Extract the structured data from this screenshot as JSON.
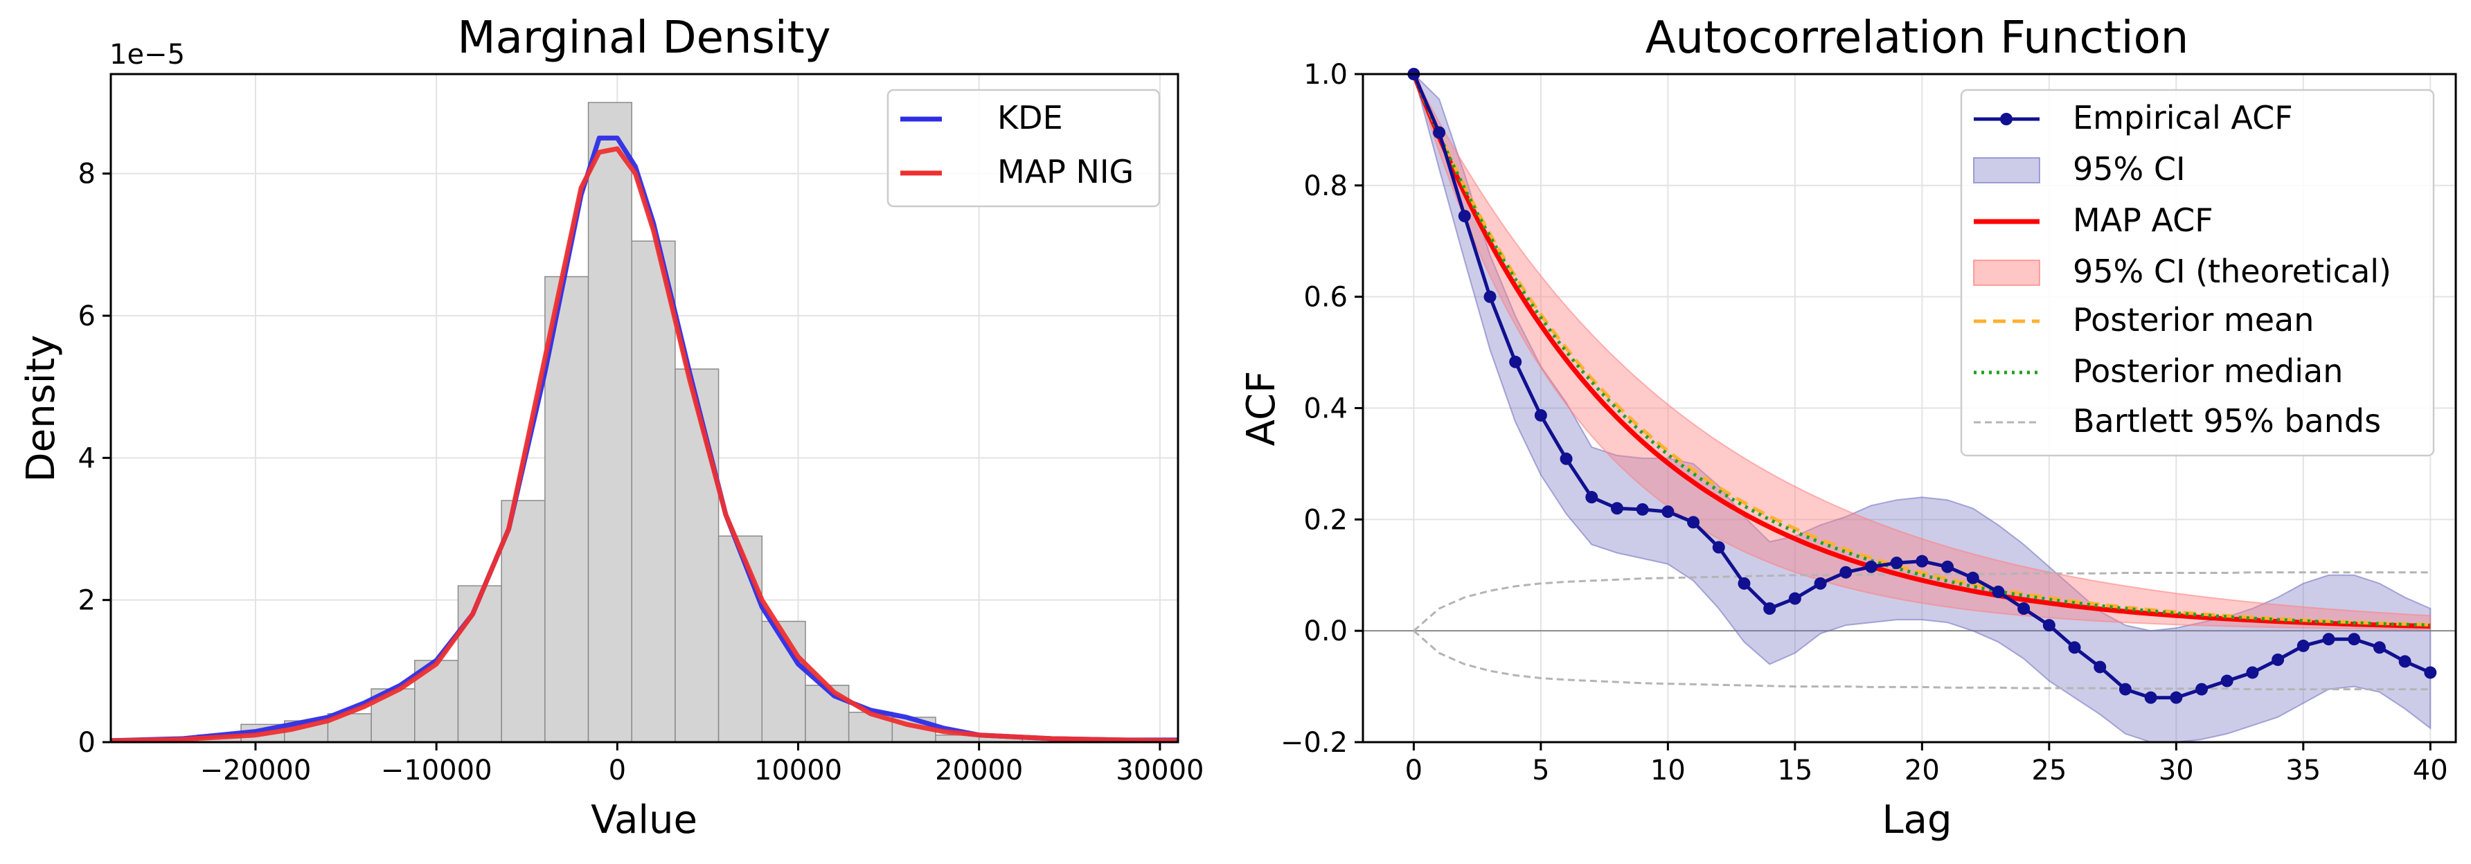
{
  "chart_data": [
    {
      "type": "histogram+line",
      "title": "Marginal Density",
      "xlabel": "Value",
      "ylabel": "Density",
      "y_scale_label": "1e−5",
      "xlim": [
        -28000,
        31000
      ],
      "ylim": [
        0,
        9.4
      ],
      "xticks": [
        -20000,
        -10000,
        0,
        10000,
        20000,
        30000
      ],
      "xtick_labels": [
        "−20000",
        "−10000",
        "0",
        "10000",
        "20000",
        "30000"
      ],
      "yticks": [
        0,
        2,
        4,
        6,
        8
      ],
      "ytick_labels": [
        "0",
        "2",
        "4",
        "6",
        "8"
      ],
      "grid": true,
      "legend_position": "top-right",
      "histogram": {
        "bin_edges": [
          -28000,
          -25600,
          -23200,
          -20800,
          -18400,
          -16000,
          -13600,
          -11200,
          -8800,
          -6400,
          -4000,
          -1600,
          800,
          3200,
          5600,
          8000,
          10400,
          12800,
          15200,
          17600,
          20000,
          22400,
          24800,
          27200,
          29600,
          31000
        ],
        "heights": [
          0.05,
          0.05,
          0.1,
          0.25,
          0.3,
          0.4,
          0.75,
          1.15,
          2.2,
          3.4,
          6.55,
          9.0,
          7.05,
          5.25,
          2.9,
          1.7,
          0.8,
          0.42,
          0.35,
          0.1,
          0.08,
          0.05,
          0.05,
          0.05,
          0.05
        ]
      },
      "series": [
        {
          "name": "KDE",
          "color": "#2d2de6",
          "x": [
            -28000,
            -24000,
            -20000,
            -18000,
            -16000,
            -14000,
            -12000,
            -10000,
            -8000,
            -6000,
            -4000,
            -2000,
            -1000,
            0,
            1000,
            2000,
            4000,
            6000,
            8000,
            10000,
            12000,
            14000,
            16000,
            18000,
            20000,
            24000,
            28000,
            31000
          ],
          "y": [
            0.02,
            0.05,
            0.15,
            0.25,
            0.35,
            0.55,
            0.8,
            1.15,
            1.8,
            3.0,
            5.2,
            7.7,
            8.5,
            8.5,
            8.1,
            7.3,
            5.2,
            3.2,
            1.9,
            1.1,
            0.65,
            0.45,
            0.35,
            0.2,
            0.1,
            0.05,
            0.03,
            0.03
          ]
        },
        {
          "name": "MAP NIG",
          "color": "#ee3030",
          "x": [
            -28000,
            -24000,
            -20000,
            -18000,
            -16000,
            -14000,
            -12000,
            -10000,
            -8000,
            -6000,
            -4000,
            -2000,
            -1000,
            0,
            1000,
            2000,
            4000,
            6000,
            8000,
            10000,
            12000,
            14000,
            16000,
            18000,
            20000,
            24000,
            28000,
            31000
          ],
          "y": [
            0.02,
            0.04,
            0.1,
            0.18,
            0.3,
            0.5,
            0.75,
            1.1,
            1.8,
            3.0,
            5.4,
            7.8,
            8.3,
            8.35,
            8.0,
            7.2,
            5.1,
            3.2,
            2.0,
            1.2,
            0.7,
            0.4,
            0.25,
            0.15,
            0.1,
            0.05,
            0.03,
            0.02
          ]
        }
      ]
    },
    {
      "type": "line",
      "title": "Autocorrelation Function",
      "xlabel": "Lag",
      "ylabel": "ACF",
      "xlim": [
        -2,
        41
      ],
      "ylim": [
        -0.2,
        1.0
      ],
      "xticks": [
        0,
        5,
        10,
        15,
        20,
        25,
        30,
        35,
        40
      ],
      "xtick_labels": [
        "0",
        "5",
        "10",
        "15",
        "20",
        "25",
        "30",
        "35",
        "40"
      ],
      "yticks": [
        -0.2,
        0.0,
        0.2,
        0.4,
        0.6,
        0.8,
        1.0
      ],
      "ytick_labels": [
        "−0.2",
        "0.0",
        "0.2",
        "0.4",
        "0.6",
        "0.8",
        "1.0"
      ],
      "grid": true,
      "legend_position": "top-right",
      "lags": [
        0,
        1,
        2,
        3,
        4,
        5,
        6,
        7,
        8,
        9,
        10,
        11,
        12,
        13,
        14,
        15,
        16,
        17,
        18,
        19,
        20,
        21,
        22,
        23,
        24,
        25,
        26,
        27,
        28,
        29,
        30,
        31,
        32,
        33,
        34,
        35,
        36,
        37,
        38,
        39,
        40
      ],
      "series": [
        {
          "name": "Empirical ACF",
          "color": "#101090",
          "values": [
            1.0,
            0.895,
            0.745,
            0.6,
            0.483,
            0.387,
            0.309,
            0.24,
            0.22,
            0.218,
            0.214,
            0.195,
            0.15,
            0.085,
            0.04,
            0.058,
            0.085,
            0.105,
            0.115,
            0.122,
            0.125,
            0.115,
            0.095,
            0.07,
            0.04,
            0.01,
            -0.03,
            -0.065,
            -0.105,
            -0.12,
            -0.12,
            -0.105,
            -0.09,
            -0.075,
            -0.052,
            -0.027,
            -0.015,
            -0.015,
            -0.03,
            -0.055,
            -0.075
          ]
        },
        {
          "name": "95% CI",
          "color": "#6c6cc0",
          "lower": [
            1.0,
            0.83,
            0.665,
            0.505,
            0.375,
            0.28,
            0.21,
            0.155,
            0.14,
            0.13,
            0.12,
            0.09,
            0.04,
            -0.02,
            -0.06,
            -0.04,
            -0.005,
            0.01,
            0.015,
            0.02,
            0.02,
            0.015,
            0.0,
            -0.02,
            -0.05,
            -0.09,
            -0.12,
            -0.15,
            -0.185,
            -0.2,
            -0.2,
            -0.195,
            -0.185,
            -0.17,
            -0.155,
            -0.13,
            -0.105,
            -0.1,
            -0.11,
            -0.14,
            -0.175
          ],
          "upper": [
            1.0,
            0.955,
            0.82,
            0.675,
            0.565,
            0.475,
            0.41,
            0.33,
            0.315,
            0.31,
            0.31,
            0.3,
            0.26,
            0.205,
            0.16,
            0.17,
            0.19,
            0.205,
            0.225,
            0.235,
            0.24,
            0.235,
            0.22,
            0.19,
            0.155,
            0.115,
            0.075,
            0.035,
            0.01,
            0.0,
            0.005,
            0.015,
            0.025,
            0.04,
            0.06,
            0.085,
            0.1,
            0.1,
            0.085,
            0.06,
            0.04
          ]
        },
        {
          "name": "MAP ACF",
          "color": "#ff0000",
          "decay_rate": 0.12
        },
        {
          "name": "95% CI (theoretical)",
          "color": "#ff8080",
          "lower_decay_rate": 0.15,
          "upper_decay_rate": 0.09
        },
        {
          "name": "Posterior mean",
          "color": "#ffb030",
          "decay_rate": 0.113
        },
        {
          "name": "Posterior median",
          "color": "#22a022",
          "decay_rate": 0.115
        },
        {
          "name": "Bartlett 95% bands",
          "color": "#b4b4b4",
          "values": [
            0.0,
            0.04,
            0.06,
            0.072,
            0.08,
            0.085,
            0.088,
            0.09,
            0.092,
            0.094,
            0.095,
            0.096,
            0.097,
            0.098,
            0.099,
            0.1,
            0.1,
            0.1,
            0.101,
            0.101,
            0.101,
            0.102,
            0.102,
            0.102,
            0.103,
            0.103,
            0.103,
            0.103,
            0.104,
            0.104,
            0.104,
            0.104,
            0.104,
            0.105,
            0.105,
            0.105,
            0.105,
            0.105,
            0.105,
            0.105,
            0.105
          ]
        }
      ]
    }
  ]
}
